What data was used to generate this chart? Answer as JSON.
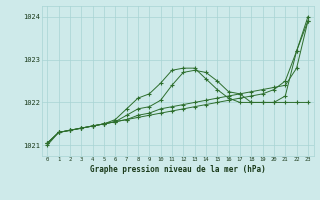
{
  "background_color": "#ceeaea",
  "grid_color": "#a8d4d4",
  "line_color": "#2d6e2d",
  "title": "Graphe pression niveau de la mer (hPa)",
  "hours": [
    0,
    1,
    2,
    3,
    4,
    5,
    6,
    7,
    8,
    9,
    10,
    11,
    12,
    13,
    14,
    15,
    16,
    17,
    18,
    19,
    20,
    21,
    22,
    23
  ],
  "ylim": [
    1020.75,
    1024.25
  ],
  "yticks": [
    1021,
    1022,
    1023,
    1024
  ],
  "series1": [
    1021.05,
    1021.3,
    1021.35,
    1021.4,
    1021.45,
    1021.5,
    1021.55,
    1021.6,
    1021.7,
    1021.75,
    1021.85,
    1021.9,
    1021.95,
    1022.0,
    1022.05,
    1022.1,
    1022.15,
    1022.2,
    1022.25,
    1022.3,
    1022.35,
    1022.4,
    1022.8,
    1023.9
  ],
  "series2": [
    1021.05,
    1021.3,
    1021.35,
    1021.4,
    1021.45,
    1021.5,
    1021.55,
    1021.7,
    1021.85,
    1021.9,
    1022.05,
    1022.4,
    1022.7,
    1022.75,
    1022.7,
    1022.5,
    1022.25,
    1022.2,
    1022.0,
    1022.0,
    1022.0,
    1022.0,
    1022.0,
    1022.0
  ],
  "series3": [
    1021.05,
    1021.3,
    1021.35,
    1021.4,
    1021.45,
    1021.5,
    1021.6,
    1021.85,
    1022.1,
    1022.2,
    1022.45,
    1022.75,
    1022.8,
    1022.8,
    1022.55,
    1022.3,
    1022.1,
    1022.0,
    1022.0,
    1022.0,
    1022.0,
    1022.15,
    1023.2,
    1023.9
  ],
  "series4": [
    1021.0,
    1021.3,
    1021.35,
    1021.4,
    1021.45,
    1021.5,
    1021.55,
    1021.6,
    1021.65,
    1021.7,
    1021.75,
    1021.8,
    1021.85,
    1021.9,
    1021.95,
    1022.0,
    1022.05,
    1022.1,
    1022.15,
    1022.2,
    1022.3,
    1022.5,
    1023.2,
    1024.0
  ]
}
